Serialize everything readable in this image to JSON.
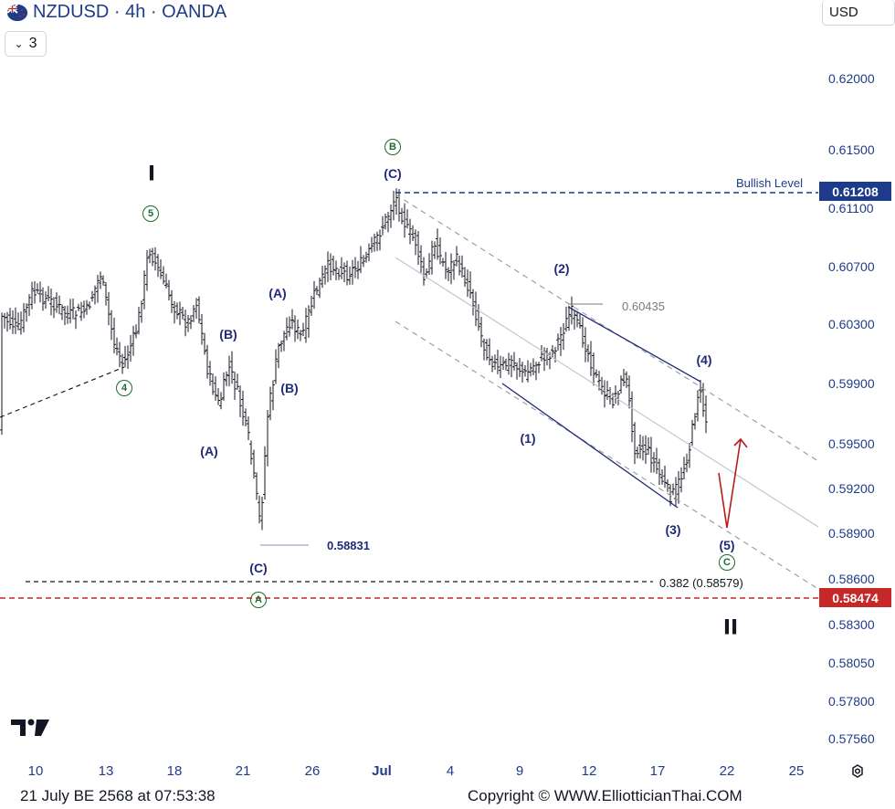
{
  "header": {
    "title": "NZDUSD · 4h · OANDA",
    "flag_icon": "nz-us-flag-icon",
    "interval_count": "3",
    "currency": "USD"
  },
  "price_axis": {
    "labels": [
      "0.62000",
      "0.61500",
      "0.61100",
      "0.60700",
      "0.60300",
      "0.59900",
      "0.59500",
      "0.59200",
      "0.58900",
      "0.58600",
      "0.58300",
      "0.58050",
      "0.57800",
      "0.57560"
    ],
    "bullish_tag": "0.61208",
    "bearish_tag": "0.58474",
    "bullish_color": "#1e3a8a",
    "bearish_color": "#c62828"
  },
  "time_axis": {
    "labels": [
      "10",
      "13",
      "18",
      "21",
      "26",
      "Jul",
      "4",
      "9",
      "12",
      "17",
      "22",
      "25"
    ]
  },
  "annotations": {
    "bullish_level": "Bullish Level",
    "high_label": "0.60435",
    "low_label": "0.58831",
    "fib_label": "0.382 (0.58579)"
  },
  "waves": {
    "roman_one": "I",
    "roman_two": "II",
    "circle_5": "5",
    "circle_4": "4",
    "circle_b": "B",
    "circle_a": "A",
    "circle_c": "C",
    "A1": "(A)",
    "B1": "(B)",
    "C1": "(C)",
    "A2": "(A)",
    "B2": "(B)",
    "C2": "(C)",
    "w1": "(1)",
    "w2": "(2)",
    "w3": "(3)",
    "w4": "(4)",
    "w5": "(5)"
  },
  "footer": {
    "timestamp": "21 July BE 2568 at 07:53:38",
    "copyright": "Copyright © WWW.ElliotticianThai.COM"
  }
}
